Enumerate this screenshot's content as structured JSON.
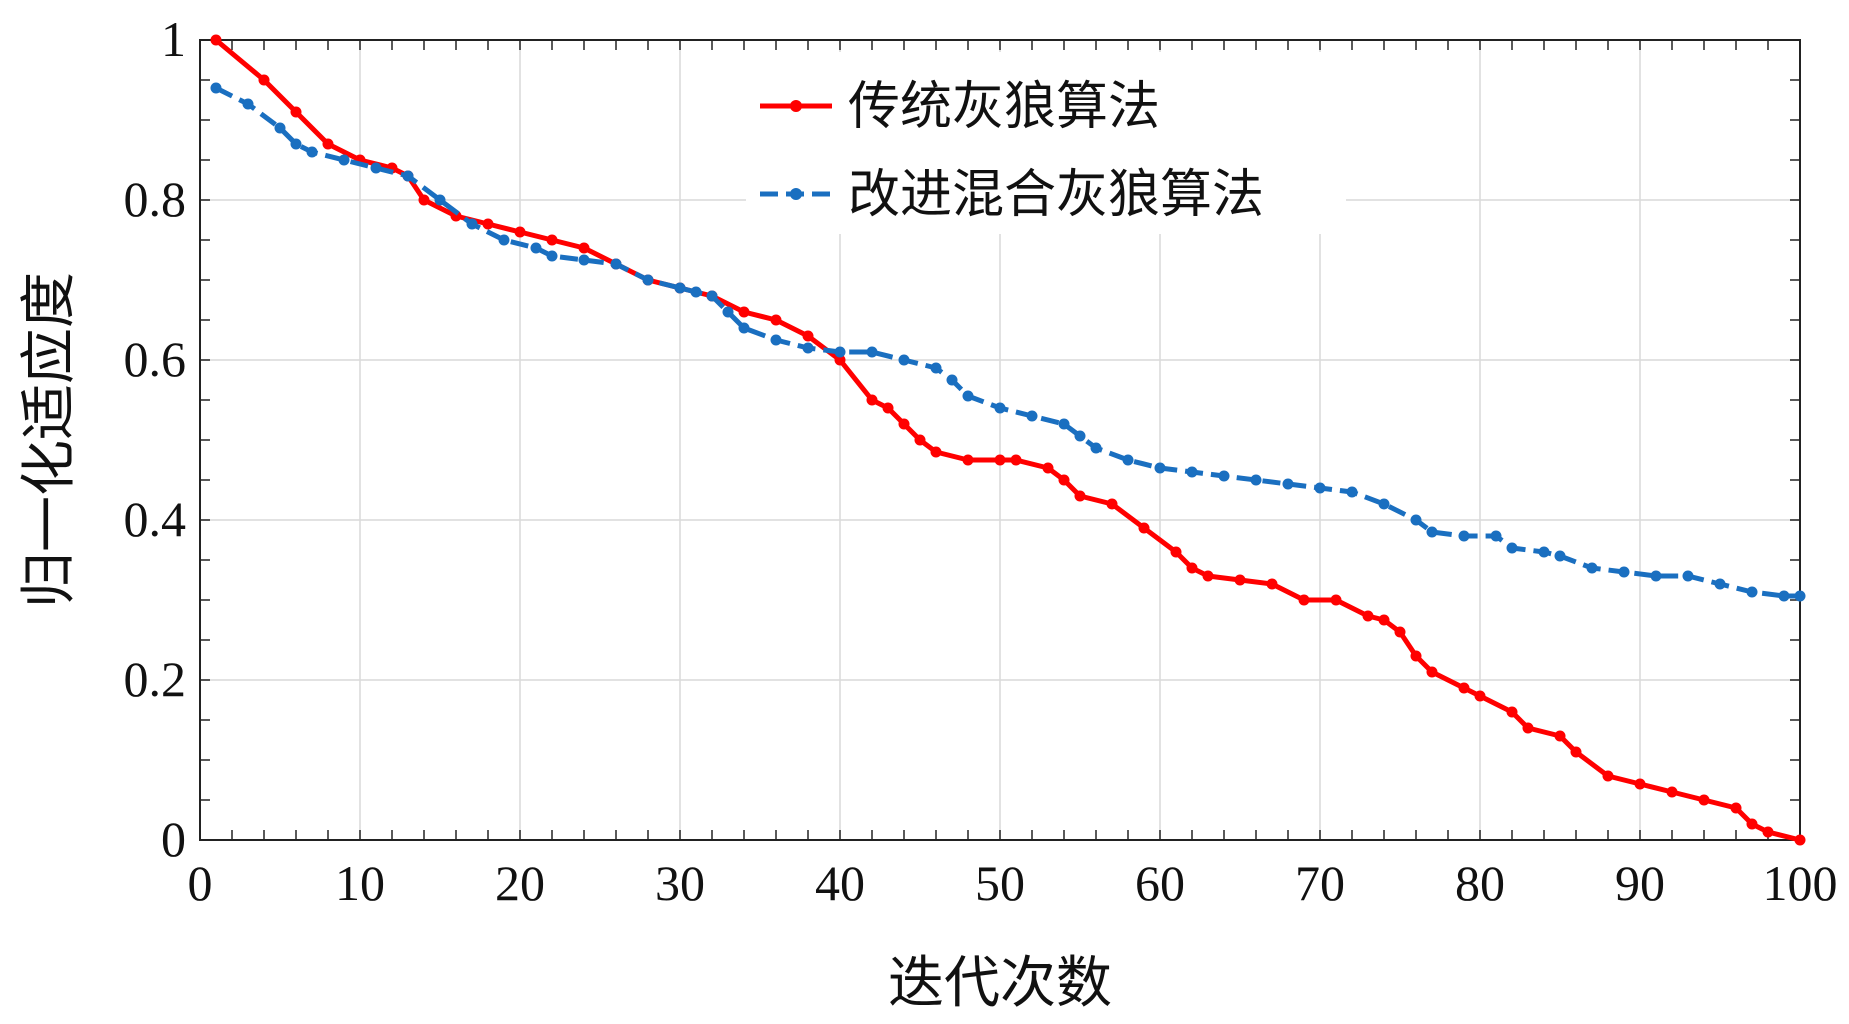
{
  "chart_data": {
    "type": "line",
    "title": "",
    "xlabel": "迭代次数",
    "ylabel": "归一化适应度",
    "xlim": [
      0,
      100
    ],
    "ylim": [
      0,
      1
    ],
    "xticks": [
      "0",
      "10",
      "20",
      "30",
      "40",
      "50",
      "60",
      "70",
      "80",
      "90",
      "100"
    ],
    "yticks": [
      "0",
      "0.2",
      "0.4",
      "0.6",
      "0.8",
      "1"
    ],
    "grid": true,
    "legend_position": "top-center",
    "series": [
      {
        "name": "传统灰狼算法",
        "color": "#ff0000",
        "marker": "circle",
        "line_style": "solid",
        "points": [
          [
            1,
            1.0
          ],
          [
            4,
            0.95
          ],
          [
            6,
            0.91
          ],
          [
            8,
            0.87
          ],
          [
            10,
            0.85
          ],
          [
            12,
            0.84
          ],
          [
            13,
            0.83
          ],
          [
            14,
            0.8
          ],
          [
            16,
            0.78
          ],
          [
            18,
            0.77
          ],
          [
            20,
            0.76
          ],
          [
            22,
            0.75
          ],
          [
            24,
            0.74
          ],
          [
            26,
            0.72
          ],
          [
            28,
            0.7
          ],
          [
            30,
            0.69
          ],
          [
            32,
            0.68
          ],
          [
            34,
            0.66
          ],
          [
            36,
            0.65
          ],
          [
            38,
            0.63
          ],
          [
            40,
            0.6
          ],
          [
            42,
            0.55
          ],
          [
            43,
            0.54
          ],
          [
            44,
            0.52
          ],
          [
            45,
            0.5
          ],
          [
            46,
            0.485
          ],
          [
            48,
            0.475
          ],
          [
            50,
            0.475
          ],
          [
            51,
            0.475
          ],
          [
            53,
            0.465
          ],
          [
            54,
            0.45
          ],
          [
            55,
            0.43
          ],
          [
            57,
            0.42
          ],
          [
            59,
            0.39
          ],
          [
            61,
            0.36
          ],
          [
            62,
            0.34
          ],
          [
            63,
            0.33
          ],
          [
            65,
            0.325
          ],
          [
            67,
            0.32
          ],
          [
            69,
            0.3
          ],
          [
            71,
            0.3
          ],
          [
            73,
            0.28
          ],
          [
            74,
            0.275
          ],
          [
            75,
            0.26
          ],
          [
            76,
            0.23
          ],
          [
            77,
            0.21
          ],
          [
            79,
            0.19
          ],
          [
            80,
            0.18
          ],
          [
            82,
            0.16
          ],
          [
            83,
            0.14
          ],
          [
            85,
            0.13
          ],
          [
            86,
            0.11
          ],
          [
            88,
            0.08
          ],
          [
            90,
            0.07
          ],
          [
            92,
            0.06
          ],
          [
            94,
            0.05
          ],
          [
            96,
            0.04
          ],
          [
            97,
            0.02
          ],
          [
            98,
            0.01
          ],
          [
            100,
            0.0
          ]
        ]
      },
      {
        "name": "改进混合灰狼算法",
        "color": "#1a6fc0",
        "marker": "circle",
        "line_style": "dashed",
        "points": [
          [
            1,
            0.94
          ],
          [
            3,
            0.92
          ],
          [
            5,
            0.89
          ],
          [
            6,
            0.87
          ],
          [
            7,
            0.86
          ],
          [
            9,
            0.85
          ],
          [
            11,
            0.84
          ],
          [
            13,
            0.83
          ],
          [
            15,
            0.8
          ],
          [
            17,
            0.77
          ],
          [
            19,
            0.75
          ],
          [
            21,
            0.74
          ],
          [
            22,
            0.73
          ],
          [
            24,
            0.725
          ],
          [
            26,
            0.72
          ],
          [
            28,
            0.7
          ],
          [
            30,
            0.69
          ],
          [
            31,
            0.685
          ],
          [
            32,
            0.68
          ],
          [
            33,
            0.66
          ],
          [
            34,
            0.64
          ],
          [
            36,
            0.625
          ],
          [
            38,
            0.615
          ],
          [
            40,
            0.61
          ],
          [
            42,
            0.61
          ],
          [
            44,
            0.6
          ],
          [
            46,
            0.59
          ],
          [
            47,
            0.575
          ],
          [
            48,
            0.555
          ],
          [
            50,
            0.54
          ],
          [
            52,
            0.53
          ],
          [
            54,
            0.52
          ],
          [
            55,
            0.505
          ],
          [
            56,
            0.49
          ],
          [
            58,
            0.475
          ],
          [
            60,
            0.465
          ],
          [
            62,
            0.46
          ],
          [
            64,
            0.455
          ],
          [
            66,
            0.45
          ],
          [
            68,
            0.445
          ],
          [
            70,
            0.44
          ],
          [
            72,
            0.435
          ],
          [
            74,
            0.42
          ],
          [
            76,
            0.4
          ],
          [
            77,
            0.385
          ],
          [
            79,
            0.38
          ],
          [
            81,
            0.38
          ],
          [
            82,
            0.365
          ],
          [
            84,
            0.36
          ],
          [
            85,
            0.355
          ],
          [
            87,
            0.34
          ],
          [
            89,
            0.335
          ],
          [
            91,
            0.33
          ],
          [
            93,
            0.33
          ],
          [
            95,
            0.32
          ],
          [
            97,
            0.31
          ],
          [
            99,
            0.305
          ],
          [
            100,
            0.305
          ]
        ]
      }
    ]
  }
}
